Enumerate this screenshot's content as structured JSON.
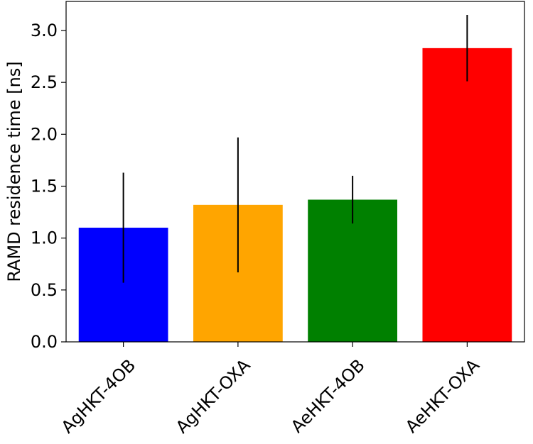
{
  "chart_data": {
    "type": "bar",
    "title": "",
    "xlabel": "",
    "ylabel": "RAMD residence time  [ns]",
    "categories": [
      "AgHKT-4OB",
      "AgHKT-OXA",
      "AeHKT-4OB",
      "AeHKT-OXA"
    ],
    "values": [
      1.1,
      1.32,
      1.37,
      2.83
    ],
    "error_low": [
      0.57,
      0.67,
      1.14,
      2.51
    ],
    "error_high": [
      1.63,
      1.97,
      1.6,
      3.15
    ],
    "colors": [
      "#0000ff",
      "#ffa500",
      "#008000",
      "#ff0000"
    ],
    "ylim": [
      0,
      3.28
    ],
    "yticks": [
      0.0,
      0.5,
      1.0,
      1.5,
      2.0,
      2.5,
      3.0
    ],
    "ytick_labels": [
      "0.0",
      "0.5",
      "1.0",
      "1.5",
      "2.0",
      "2.5",
      "3.0"
    ],
    "grid": false,
    "legend": false
  }
}
